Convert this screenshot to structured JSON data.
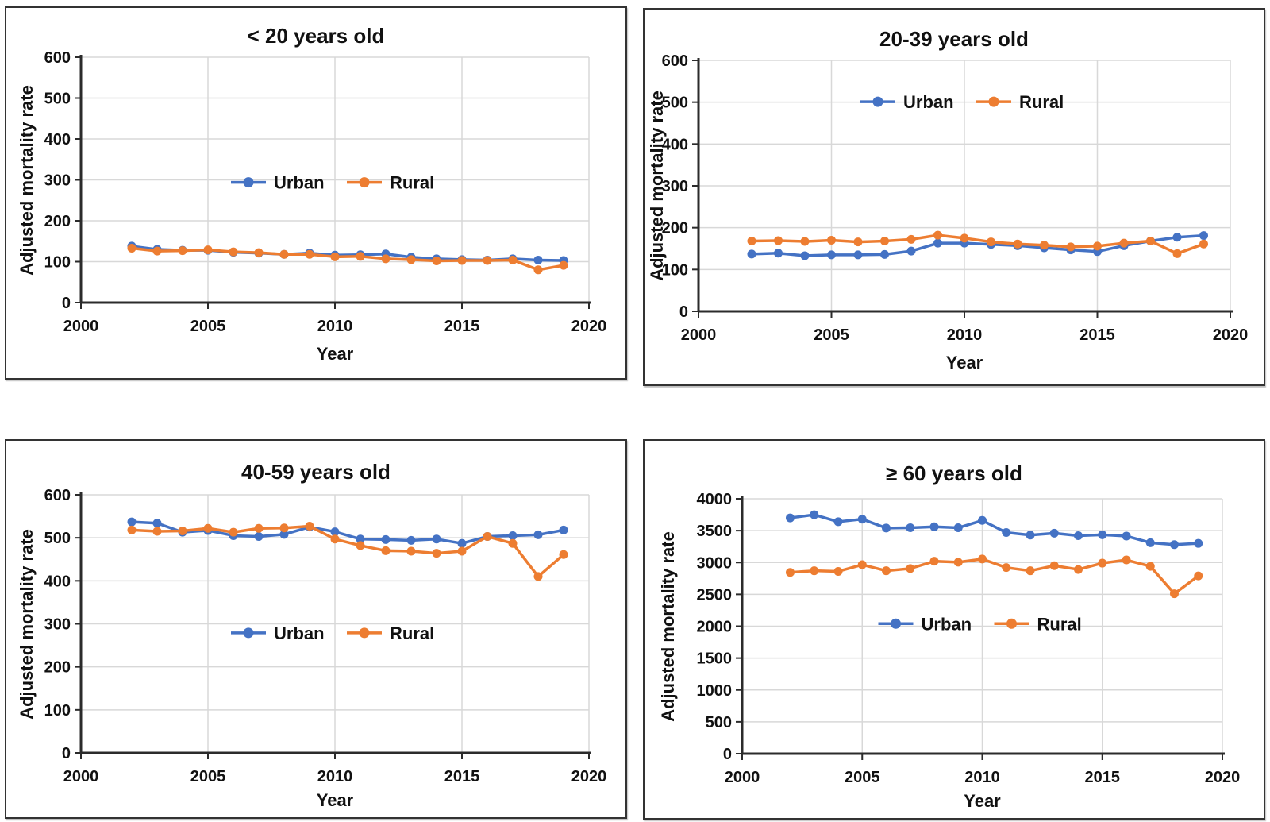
{
  "figure": {
    "colors": {
      "urban": "#4472C4",
      "rural": "#ED7D31",
      "gridline": "#D8D8D8",
      "axis": "#2b2b2b",
      "text": "#111111"
    }
  },
  "chart_data": [
    {
      "type": "line",
      "title": "< 20 years old",
      "xlabel": "Year",
      "ylabel": "Adjusted mortality rate",
      "x": [
        2002,
        2003,
        2004,
        2005,
        2006,
        2007,
        2008,
        2009,
        2010,
        2011,
        2012,
        2013,
        2014,
        2015,
        2016,
        2017,
        2018,
        2019
      ],
      "series": [
        {
          "name": "Urban",
          "color": "#4472C4",
          "values": [
            138,
            130,
            128,
            128,
            123,
            121,
            118,
            121,
            116,
            117,
            119,
            111,
            107,
            105,
            104,
            107,
            104,
            103
          ]
        },
        {
          "name": "Rural",
          "color": "#ED7D31",
          "values": [
            133,
            126,
            127,
            129,
            124,
            122,
            118,
            118,
            112,
            113,
            107,
            105,
            102,
            103,
            103,
            104,
            80,
            91
          ]
        }
      ],
      "xlim": [
        2000,
        2020
      ],
      "ylim": [
        0,
        600
      ],
      "xticks": [
        2000,
        2005,
        2010,
        2015,
        2020
      ],
      "yticks": [
        0,
        100,
        200,
        300,
        400,
        500,
        600
      ],
      "grid": true,
      "legend_position": "inside-middle-center"
    },
    {
      "type": "line",
      "title": "20-39 years old",
      "xlabel": "Year",
      "ylabel": "Adjusted mortality rate",
      "x": [
        2002,
        2003,
        2004,
        2005,
        2006,
        2007,
        2008,
        2009,
        2010,
        2011,
        2012,
        2013,
        2014,
        2015,
        2016,
        2017,
        2018,
        2019
      ],
      "series": [
        {
          "name": "Urban",
          "color": "#4472C4",
          "values": [
            137,
            139,
            133,
            135,
            135,
            136,
            144,
            163,
            163,
            160,
            157,
            152,
            147,
            143,
            157,
            168,
            177,
            181
          ]
        },
        {
          "name": "Rural",
          "color": "#ED7D31",
          "values": [
            168,
            169,
            167,
            170,
            166,
            168,
            172,
            182,
            175,
            166,
            161,
            158,
            154,
            156,
            163,
            168,
            138,
            161
          ]
        }
      ],
      "xlim": [
        2000,
        2020
      ],
      "ylim": [
        0,
        600
      ],
      "xticks": [
        2000,
        2005,
        2010,
        2015,
        2020
      ],
      "yticks": [
        0,
        100,
        200,
        300,
        400,
        500,
        600
      ],
      "grid": true,
      "legend_position": "inside-upper-center"
    },
    {
      "type": "line",
      "title": "40-59 years old",
      "xlabel": "Year",
      "ylabel": "Adjusted mortality rate",
      "x": [
        2002,
        2003,
        2004,
        2005,
        2006,
        2007,
        2008,
        2009,
        2010,
        2011,
        2012,
        2013,
        2014,
        2015,
        2016,
        2017,
        2018,
        2019
      ],
      "series": [
        {
          "name": "Urban",
          "color": "#4472C4",
          "values": [
            537,
            534,
            513,
            517,
            505,
            503,
            508,
            525,
            514,
            497,
            496,
            494,
            497,
            487,
            503,
            505,
            507,
            518
          ]
        },
        {
          "name": "Rural",
          "color": "#ED7D31",
          "values": [
            518,
            515,
            516,
            522,
            513,
            522,
            523,
            527,
            497,
            482,
            470,
            469,
            464,
            469,
            503,
            487,
            410,
            461
          ]
        }
      ],
      "xlim": [
        2000,
        2020
      ],
      "ylim": [
        0,
        600
      ],
      "xticks": [
        2000,
        2005,
        2010,
        2015,
        2020
      ],
      "yticks": [
        0,
        100,
        200,
        300,
        400,
        500,
        600
      ],
      "grid": true,
      "legend_position": "inside-middle-center"
    },
    {
      "type": "line",
      "title": "≥ 60 years old",
      "xlabel": "Year",
      "ylabel": "Adjusted mortality rate",
      "x": [
        2002,
        2003,
        2004,
        2005,
        2006,
        2007,
        2008,
        2009,
        2010,
        2011,
        2012,
        2013,
        2014,
        2015,
        2016,
        2017,
        2018,
        2019
      ],
      "series": [
        {
          "name": "Urban",
          "color": "#4472C4",
          "values": [
            3700,
            3750,
            3640,
            3680,
            3540,
            3545,
            3560,
            3545,
            3660,
            3470,
            3430,
            3460,
            3420,
            3435,
            3415,
            3310,
            3280,
            3300
          ]
        },
        {
          "name": "Rural",
          "color": "#ED7D31",
          "values": [
            2845,
            2870,
            2860,
            2965,
            2870,
            2905,
            3020,
            3005,
            3055,
            2920,
            2870,
            2950,
            2890,
            2990,
            3040,
            2940,
            2510,
            2790
          ]
        }
      ],
      "xlim": [
        2000,
        2020
      ],
      "ylim": [
        0,
        4000
      ],
      "xticks": [
        2000,
        2005,
        2010,
        2015,
        2020
      ],
      "yticks": [
        0,
        500,
        1000,
        1500,
        2000,
        2500,
        3000,
        3500,
        4000
      ],
      "grid": true,
      "legend_position": "inside-middle-center"
    }
  ]
}
